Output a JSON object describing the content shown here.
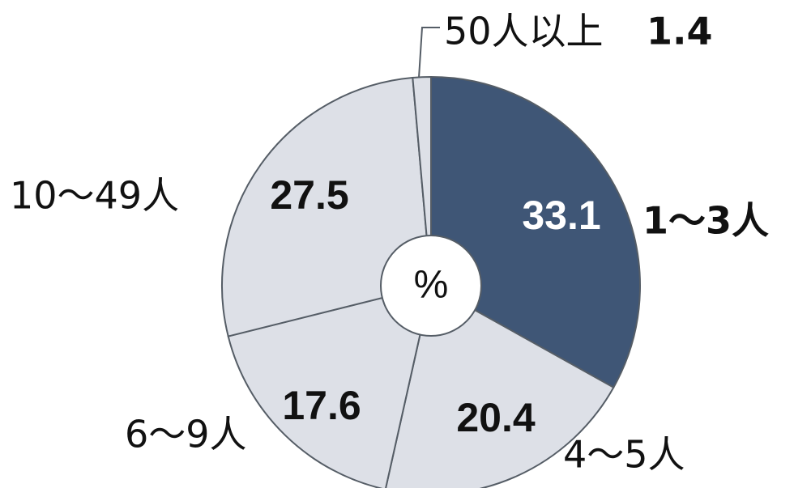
{
  "chart_data": {
    "type": "pie",
    "unit": "%",
    "categories": [
      "1～3人",
      "4～5人",
      "6～9人",
      "10～49人",
      "50人以上"
    ],
    "values": [
      33.1,
      20.4,
      17.6,
      27.5,
      1.4
    ],
    "value_labels": [
      "33.1",
      "20.4",
      "17.6",
      "27.5",
      "1.4"
    ],
    "colors": {
      "highlight": "#3f5676",
      "other": "#dde0e7",
      "highlight_text": "#ffffff",
      "other_text": "#111111"
    }
  }
}
